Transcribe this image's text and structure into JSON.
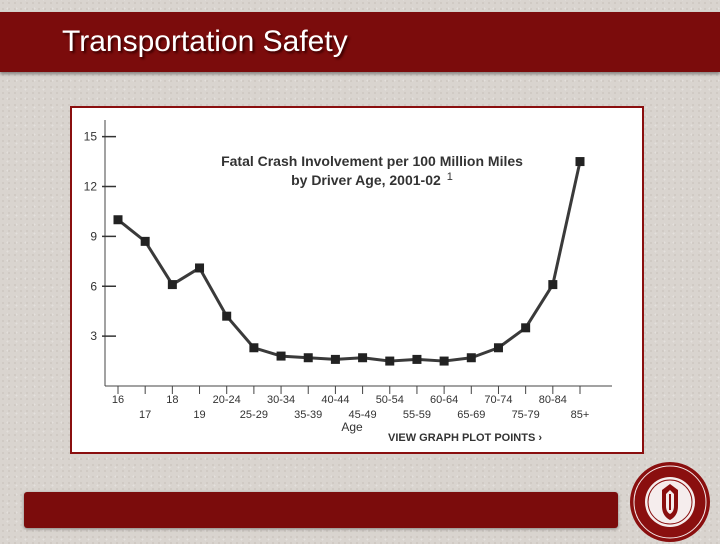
{
  "slide": {
    "title": "Transportation Safety",
    "colors": {
      "accent": "#7b0c0c",
      "line": "#333333",
      "marker": "#222222"
    }
  },
  "chart_data": {
    "type": "line",
    "title": "Fatal Crash Involvement per 100 Million Miles",
    "subtitle": "by Driver Age, 2001-02",
    "footnote_mark": "1",
    "xlabel": "Age",
    "ylabel": "",
    "ylim": [
      0,
      16
    ],
    "yticks": [
      3,
      6,
      9,
      12,
      15
    ],
    "grid": false,
    "categories": [
      "16",
      "17",
      "18",
      "19",
      "20-24",
      "25-29",
      "30-34",
      "35-39",
      "40-44",
      "45-49",
      "50-54",
      "55-59",
      "60-64",
      "65-69",
      "70-74",
      "75-79",
      "80-84",
      "85+"
    ],
    "series": [
      {
        "values": [
          10,
          8.7,
          6.1,
          7.1,
          4.2,
          2.3,
          1.8,
          1.7,
          1.6,
          1.7,
          1.5,
          1.6,
          1.5,
          1.7,
          2.3,
          3.5,
          6.1,
          13.5
        ]
      }
    ],
    "link_text": "VIEW GRAPH PLOT POINTS ›"
  },
  "seal": {
    "icon": "university-seal-icon"
  }
}
